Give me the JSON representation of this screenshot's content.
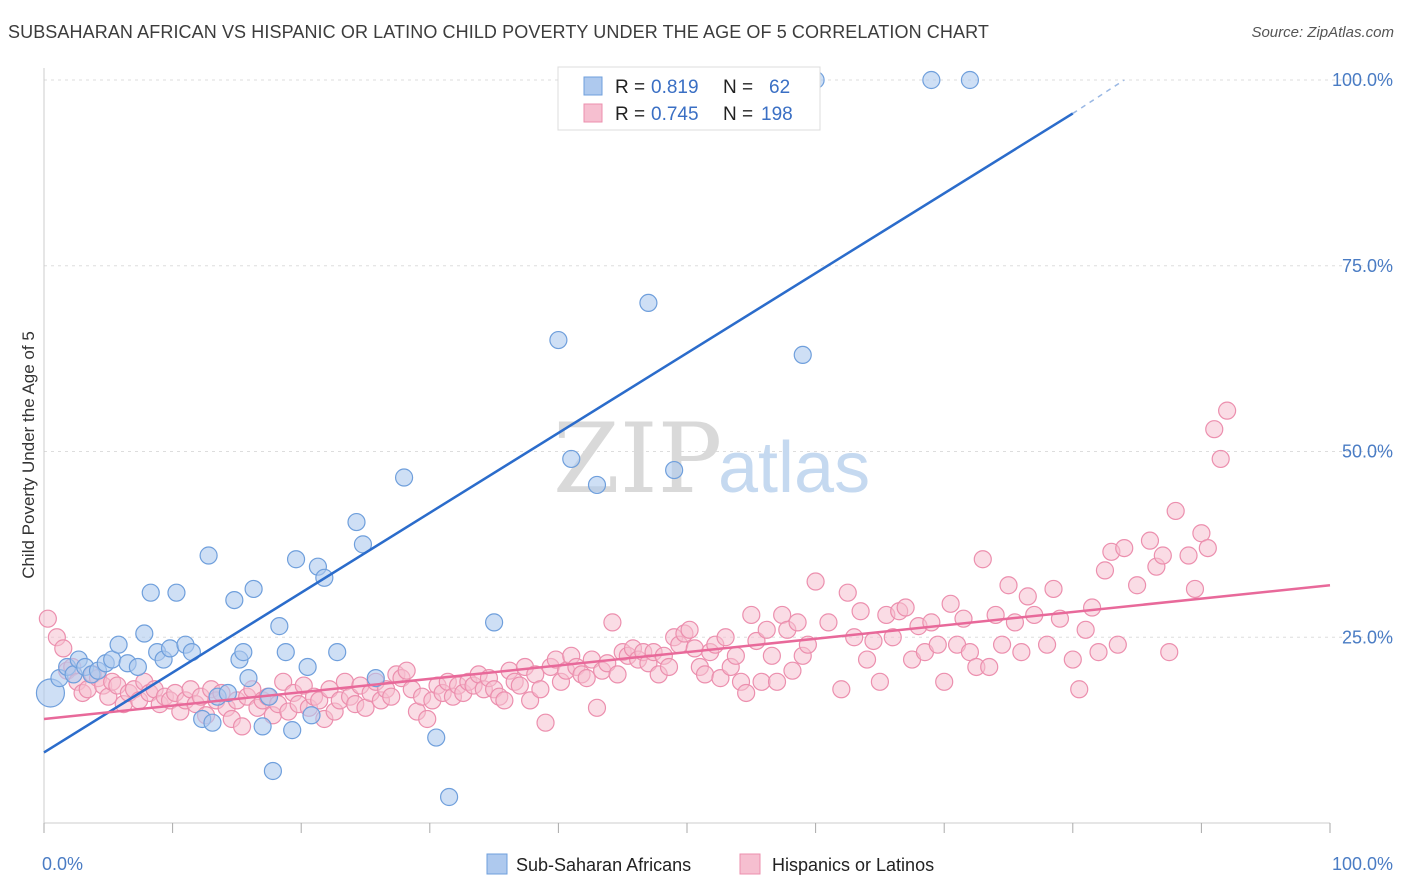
{
  "header": {
    "title": "SUBSAHARAN AFRICAN VS HISPANIC OR LATINO CHILD POVERTY UNDER THE AGE OF 5 CORRELATION CHART",
    "source": "Source: ZipAtlas.com"
  },
  "watermark": {
    "part1": "ZIP",
    "part2": "atlas"
  },
  "legend": {
    "rows": [
      {
        "r_label": "R =",
        "r_value": "0.819",
        "n_label": "N =",
        "n_value": "62"
      },
      {
        "r_label": "R =",
        "r_value": "0.745",
        "n_label": "N =",
        "n_value": "198"
      }
    ]
  },
  "bottom_legend": {
    "series1": "Sub-Saharan Africans",
    "series2": "Hispanics or Latinos"
  },
  "colors": {
    "blue_fill": "#aec9ee",
    "blue_stroke": "#6f9fdc",
    "blue_line": "#2b6ccb",
    "pink_fill": "#f6bfd0",
    "pink_stroke": "#ec8fae",
    "pink_line": "#e8699a",
    "tick_text": "#4a7cc4"
  },
  "chart_data": {
    "type": "scatter",
    "title": "SUBSAHARAN AFRICAN VS HISPANIC OR LATINO CHILD POVERTY UNDER THE AGE OF 5 CORRELATION CHART",
    "xlabel": "",
    "ylabel": "Child Poverty Under the Age of 5",
    "xlim": [
      0,
      100
    ],
    "ylim": [
      0,
      100
    ],
    "x_tick_labels": [
      "0.0%",
      "100.0%"
    ],
    "y_tick_labels": [
      "25.0%",
      "50.0%",
      "75.0%",
      "100.0%"
    ],
    "y_ticks": [
      25,
      50,
      75,
      100
    ],
    "grid": true,
    "legend_position": "top-center",
    "series": [
      {
        "name": "Sub-Saharan Africans",
        "trend": {
          "x0": 0,
          "y0": 9.5,
          "x1": 80,
          "y1": 95.5,
          "dash_x1": 84,
          "dash_y1": 100
        },
        "points": [
          [
            0.5,
            17.5
          ],
          [
            1.2,
            19.5
          ],
          [
            1.8,
            21
          ],
          [
            2.3,
            20
          ],
          [
            2.7,
            22
          ],
          [
            3.2,
            21
          ],
          [
            3.7,
            20
          ],
          [
            4.2,
            20.5
          ],
          [
            4.8,
            21.5
          ],
          [
            5.3,
            22
          ],
          [
            5.8,
            24
          ],
          [
            6.5,
            21.5
          ],
          [
            7.3,
            21
          ],
          [
            7.8,
            25.5
          ],
          [
            8.3,
            31
          ],
          [
            8.8,
            23
          ],
          [
            9.3,
            22
          ],
          [
            9.8,
            23.5
          ],
          [
            10.3,
            31
          ],
          [
            11,
            24
          ],
          [
            11.5,
            23
          ],
          [
            12.3,
            14
          ],
          [
            12.8,
            36
          ],
          [
            13.1,
            13.5
          ],
          [
            13.5,
            17
          ],
          [
            14.3,
            17.5
          ],
          [
            14.8,
            30
          ],
          [
            15.2,
            22
          ],
          [
            15.5,
            23
          ],
          [
            15.9,
            19.5
          ],
          [
            16.3,
            31.5
          ],
          [
            17,
            13
          ],
          [
            17.5,
            17
          ],
          [
            17.8,
            7
          ],
          [
            18.3,
            26.5
          ],
          [
            18.8,
            23
          ],
          [
            19.3,
            12.5
          ],
          [
            19.6,
            35.5
          ],
          [
            20.5,
            21
          ],
          [
            20.8,
            14.5
          ],
          [
            21.3,
            34.5
          ],
          [
            21.8,
            33
          ],
          [
            22.8,
            23
          ],
          [
            24.3,
            40.5
          ],
          [
            24.8,
            37.5
          ],
          [
            25.8,
            19.5
          ],
          [
            28,
            46.5
          ],
          [
            30.5,
            11.5
          ],
          [
            31.5,
            3.5
          ],
          [
            35,
            27
          ],
          [
            40,
            65
          ],
          [
            41,
            49
          ],
          [
            43,
            45.5
          ],
          [
            47,
            70
          ],
          [
            49,
            47.5
          ],
          [
            59,
            63
          ],
          [
            60,
            100
          ],
          [
            69,
            100
          ],
          [
            72,
            100
          ]
        ]
      },
      {
        "name": "Hispanics or Latinos",
        "trend": {
          "x0": 0,
          "y0": 14,
          "x1": 100,
          "y1": 32
        },
        "points": [
          [
            0.3,
            27.5
          ],
          [
            1,
            25
          ],
          [
            1.5,
            23.5
          ],
          [
            1.8,
            20.5
          ],
          [
            2.2,
            21
          ],
          [
            2.6,
            19
          ],
          [
            3,
            17.5
          ],
          [
            3.4,
            18
          ],
          [
            3.8,
            20
          ],
          [
            4.2,
            19.5
          ],
          [
            4.6,
            18.5
          ],
          [
            5,
            17
          ],
          [
            5.3,
            19
          ],
          [
            5.7,
            18.5
          ],
          [
            6.2,
            16
          ],
          [
            6.6,
            17.5
          ],
          [
            7,
            18
          ],
          [
            7.4,
            16.5
          ],
          [
            7.8,
            19
          ],
          [
            8.2,
            17.5
          ],
          [
            8.6,
            18
          ],
          [
            9,
            16
          ],
          [
            9.4,
            17
          ],
          [
            9.8,
            16.5
          ],
          [
            10.2,
            17.5
          ],
          [
            10.6,
            15
          ],
          [
            11,
            16.5
          ],
          [
            11.4,
            18
          ],
          [
            11.8,
            16
          ],
          [
            12.2,
            17
          ],
          [
            12.6,
            14.5
          ],
          [
            13,
            18
          ],
          [
            13.4,
            16.5
          ],
          [
            13.8,
            17.5
          ],
          [
            14.2,
            15.5
          ],
          [
            14.6,
            14
          ],
          [
            15,
            16.5
          ],
          [
            15.4,
            13
          ],
          [
            15.8,
            17
          ],
          [
            16.2,
            18
          ],
          [
            16.6,
            15.5
          ],
          [
            17,
            16.5
          ],
          [
            17.4,
            17
          ],
          [
            17.8,
            14.5
          ],
          [
            18.2,
            16
          ],
          [
            18.6,
            19
          ],
          [
            19,
            15
          ],
          [
            19.4,
            17.5
          ],
          [
            19.8,
            16
          ],
          [
            20.2,
            18.5
          ],
          [
            20.6,
            15.5
          ],
          [
            21,
            17
          ],
          [
            21.4,
            16.5
          ],
          [
            21.8,
            14
          ],
          [
            22.2,
            18
          ],
          [
            22.6,
            15
          ],
          [
            23,
            16.5
          ],
          [
            23.4,
            19
          ],
          [
            23.8,
            17
          ],
          [
            24.2,
            16
          ],
          [
            24.6,
            18.5
          ],
          [
            25,
            15.5
          ],
          [
            25.4,
            17.5
          ],
          [
            25.8,
            19
          ],
          [
            26.2,
            16.5
          ],
          [
            26.6,
            18
          ],
          [
            27,
            17
          ],
          [
            27.4,
            20
          ],
          [
            27.8,
            19.5
          ],
          [
            28.2,
            20.5
          ],
          [
            28.6,
            18
          ],
          [
            29,
            15
          ],
          [
            29.4,
            17
          ],
          [
            29.8,
            14
          ],
          [
            30.2,
            16.5
          ],
          [
            30.6,
            18.5
          ],
          [
            31,
            17.5
          ],
          [
            31.4,
            19
          ],
          [
            31.8,
            17
          ],
          [
            32.2,
            18.5
          ],
          [
            32.6,
            17.5
          ],
          [
            33,
            19
          ],
          [
            33.4,
            18.5
          ],
          [
            33.8,
            20
          ],
          [
            34.2,
            18
          ],
          [
            34.6,
            19.5
          ],
          [
            35,
            18
          ],
          [
            35.4,
            17
          ],
          [
            35.8,
            16.5
          ],
          [
            36.2,
            20.5
          ],
          [
            36.6,
            19
          ],
          [
            37,
            18.5
          ],
          [
            37.4,
            21
          ],
          [
            37.8,
            16.5
          ],
          [
            38.2,
            20
          ],
          [
            38.6,
            18
          ],
          [
            39,
            13.5
          ],
          [
            39.4,
            21
          ],
          [
            39.8,
            22
          ],
          [
            40.2,
            19
          ],
          [
            40.6,
            20.5
          ],
          [
            41,
            22.5
          ],
          [
            41.4,
            21
          ],
          [
            41.8,
            20
          ],
          [
            42.2,
            19.5
          ],
          [
            42.6,
            22
          ],
          [
            43,
            15.5
          ],
          [
            43.4,
            20.5
          ],
          [
            43.8,
            21.5
          ],
          [
            44.2,
            27
          ],
          [
            44.6,
            20
          ],
          [
            45,
            23
          ],
          [
            45.4,
            22.5
          ],
          [
            45.8,
            23.5
          ],
          [
            46.2,
            22
          ],
          [
            46.6,
            23
          ],
          [
            47,
            21.5
          ],
          [
            47.4,
            23
          ],
          [
            47.8,
            20
          ],
          [
            48.2,
            22.5
          ],
          [
            48.6,
            21
          ],
          [
            49,
            25
          ],
          [
            49.4,
            24
          ],
          [
            49.8,
            25.5
          ],
          [
            50.2,
            26
          ],
          [
            50.6,
            23.5
          ],
          [
            51,
            21
          ],
          [
            51.4,
            20
          ],
          [
            51.8,
            23
          ],
          [
            52.2,
            24
          ],
          [
            52.6,
            19.5
          ],
          [
            53,
            25
          ],
          [
            53.4,
            21
          ],
          [
            53.8,
            22.5
          ],
          [
            54.2,
            19
          ],
          [
            54.6,
            17.5
          ],
          [
            55,
            28
          ],
          [
            55.4,
            24.5
          ],
          [
            55.8,
            19
          ],
          [
            56.2,
            26
          ],
          [
            56.6,
            22.5
          ],
          [
            57,
            19
          ],
          [
            57.4,
            28
          ],
          [
            57.8,
            26
          ],
          [
            58.2,
            20.5
          ],
          [
            58.6,
            27
          ],
          [
            59,
            22.5
          ],
          [
            59.4,
            24
          ],
          [
            60,
            32.5
          ],
          [
            61,
            27
          ],
          [
            62,
            18
          ],
          [
            62.5,
            31
          ],
          [
            63,
            25
          ],
          [
            63.5,
            28.5
          ],
          [
            64,
            22
          ],
          [
            64.5,
            24.5
          ],
          [
            65,
            19
          ],
          [
            65.5,
            28
          ],
          [
            66,
            25
          ],
          [
            66.5,
            28.5
          ],
          [
            67,
            29
          ],
          [
            67.5,
            22
          ],
          [
            68,
            26.5
          ],
          [
            68.5,
            23
          ],
          [
            69,
            27
          ],
          [
            69.5,
            24
          ],
          [
            70,
            19
          ],
          [
            70.5,
            29.5
          ],
          [
            71,
            24
          ],
          [
            71.5,
            27.5
          ],
          [
            72,
            23
          ],
          [
            72.5,
            21
          ],
          [
            73,
            35.5
          ],
          [
            73.5,
            21
          ],
          [
            74,
            28
          ],
          [
            74.5,
            24
          ],
          [
            75,
            32
          ],
          [
            75.5,
            27
          ],
          [
            76,
            23
          ],
          [
            76.5,
            30.5
          ],
          [
            77,
            28
          ],
          [
            78,
            24
          ],
          [
            78.5,
            31.5
          ],
          [
            79,
            27.5
          ],
          [
            80,
            22
          ],
          [
            80.5,
            18
          ],
          [
            81,
            26
          ],
          [
            81.5,
            29
          ],
          [
            82,
            23
          ],
          [
            82.5,
            34
          ],
          [
            83,
            36.5
          ],
          [
            83.5,
            24
          ],
          [
            84,
            37
          ],
          [
            85,
            32
          ],
          [
            86,
            38
          ],
          [
            86.5,
            34.5
          ],
          [
            87,
            36
          ],
          [
            87.5,
            23
          ],
          [
            88,
            42
          ],
          [
            89,
            36
          ],
          [
            89.5,
            31.5
          ],
          [
            90,
            39
          ],
          [
            90.5,
            37
          ],
          [
            91,
            53
          ],
          [
            91.5,
            49
          ],
          [
            92,
            55.5
          ]
        ]
      }
    ]
  }
}
